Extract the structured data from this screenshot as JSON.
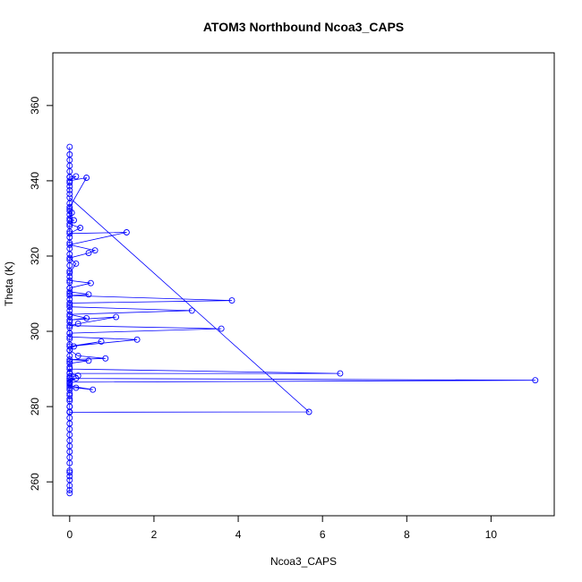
{
  "chart_data": {
    "type": "scatter",
    "style": "line-with-open-circle-markers",
    "title": "ATOM3 Northbound Ncoa3_CAPS",
    "xlabel": "Ncoa3_CAPS",
    "ylabel": "Theta (K)",
    "xlim": [
      -0.4,
      11.5
    ],
    "ylim": [
      251,
      374
    ],
    "xticks": [
      0,
      2,
      4,
      6,
      8,
      10
    ],
    "yticks": [
      260,
      280,
      300,
      320,
      340,
      360
    ],
    "series_color": "#0000ff",
    "grid": false,
    "legend": "none",
    "series": [
      {
        "x": [
          0.0,
          0.0,
          0.0,
          0.0,
          0.0,
          0.0,
          0.0,
          0.0,
          0.0,
          0.0,
          0.0,
          0.0,
          0.0,
          0.0,
          0.0,
          0.0,
          0.0,
          0.0,
          0.0,
          0.0,
          0.0,
          0.0,
          0.0,
          0.0,
          0.0,
          0.0,
          0.0,
          0.0,
          0.0,
          0.0,
          0.0,
          0.0,
          0.0,
          0.0,
          0.0,
          0.0,
          0.0,
          0.0,
          0.0,
          0.0,
          0.0,
          0.0,
          0.0,
          0.0,
          0.0,
          0.0,
          0.0,
          0.0,
          0.0,
          0.0,
          0.0,
          0.0,
          0.0,
          0.0,
          0.0,
          0.0,
          5.68,
          0.0,
          0.0,
          0.0,
          0.0,
          0.0,
          0.15,
          0.55,
          0.0,
          0.0,
          0.0,
          0.15,
          0.0,
          11.05,
          0.0,
          0.0,
          0.2,
          0.0,
          6.42,
          0.0,
          0.0,
          0.45,
          0.0,
          0.85,
          0.2,
          0.0,
          0.1,
          0.75,
          0.0,
          1.6,
          0.0,
          0.0,
          3.6,
          0.0,
          0.2,
          1.1,
          0.0,
          0.4,
          0.0,
          2.9,
          0.0,
          0.0,
          3.85,
          0.0,
          0.45,
          0.0,
          0.0,
          0.5,
          0.0,
          0.0,
          0.15,
          0.0,
          0.45,
          0.6,
          0.0,
          1.35,
          0.0,
          0.25,
          0.0,
          0.1,
          0.0,
          0.05,
          0.0,
          0.0,
          0.4,
          0.0,
          0.15,
          0.0,
          0.0,
          0.0,
          0.0,
          0.0,
          0.0,
          0.0,
          0.0,
          0.0,
          0.0,
          0.0
        ],
        "y": [
          257.0,
          257.8,
          259.0,
          260.5,
          261.5,
          262.5,
          263.0,
          265.0,
          266.5,
          268.0,
          269.5,
          271.0,
          272.5,
          274.0,
          275.5,
          277.0,
          278.5,
          278.6,
          280.0,
          281.5,
          283.0,
          284.5,
          286.0,
          287.5,
          289.0,
          290.5,
          292.0,
          293.5,
          295.0,
          296.5,
          298.0,
          299.5,
          301.0,
          302.5,
          304.0,
          305.5,
          307.0,
          308.5,
          310.0,
          311.5,
          313.0,
          314.5,
          316.0,
          317.5,
          319.0,
          320.5,
          322.0,
          323.5,
          325.0,
          326.5,
          328.0,
          329.5,
          331.0,
          332.5,
          334.0,
          335.5,
          278.6,
          278.5,
          280.0,
          282.0,
          283.5,
          285.0,
          285.0,
          284.5,
          285.5,
          286.2,
          287.0,
          287.5,
          286.5,
          287.0,
          287.5,
          288.0,
          288.2,
          288.8,
          288.8,
          290.0,
          291.5,
          292.2,
          292.5,
          292.8,
          293.5,
          295.0,
          296.0,
          297.3,
          296.0,
          297.8,
          298.5,
          299.5,
          300.7,
          301.5,
          302.0,
          303.8,
          303.0,
          303.5,
          304.5,
          305.5,
          306.5,
          307.5,
          308.2,
          309.5,
          309.8,
          310.5,
          311.5,
          312.8,
          313.5,
          315.5,
          318.0,
          319.5,
          320.8,
          321.5,
          323.0,
          326.3,
          326.0,
          327.5,
          328.5,
          329.5,
          330.0,
          331.5,
          332.0,
          333.0,
          340.8,
          340.0,
          341.2,
          341.0,
          336.5,
          337.5,
          338.5,
          339.5,
          341.0,
          342.5,
          344.0,
          345.5,
          347.0,
          349.0
        ]
      }
    ]
  }
}
